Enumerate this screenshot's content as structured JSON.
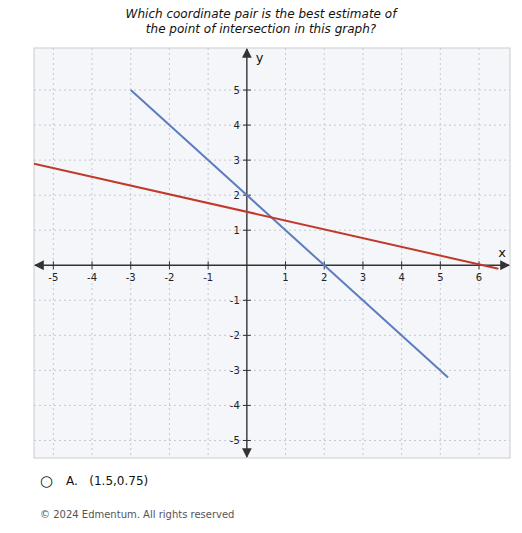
{
  "chart_data": {
    "type": "line",
    "title": "Which coordinate pair is the best estimate of the point of intersection in this graph?",
    "x_label": "x",
    "y_label": "y",
    "xlim": [
      -5.5,
      6.8
    ],
    "ylim": [
      -5.5,
      6.2
    ],
    "xticks": [
      -5,
      -4,
      -3,
      -2,
      -1,
      1,
      2,
      3,
      4,
      5,
      6
    ],
    "yticks": [
      -5,
      -4,
      -3,
      -2,
      -1,
      1,
      2,
      3,
      4,
      5
    ],
    "grid": true,
    "series": [
      {
        "color": "#5b7dbf",
        "x": [
          -3.0,
          5.2
        ],
        "values": [
          5.0,
          -3.2
        ]
      },
      {
        "color": "#c0392b",
        "x": [
          -5.5,
          6.5
        ],
        "values": [
          2.9,
          -0.1
        ]
      }
    ],
    "annotations": [
      "○",
      "A.   (1.5,0.75)",
      "© 2024 Edmentum. All rights reserved"
    ]
  }
}
